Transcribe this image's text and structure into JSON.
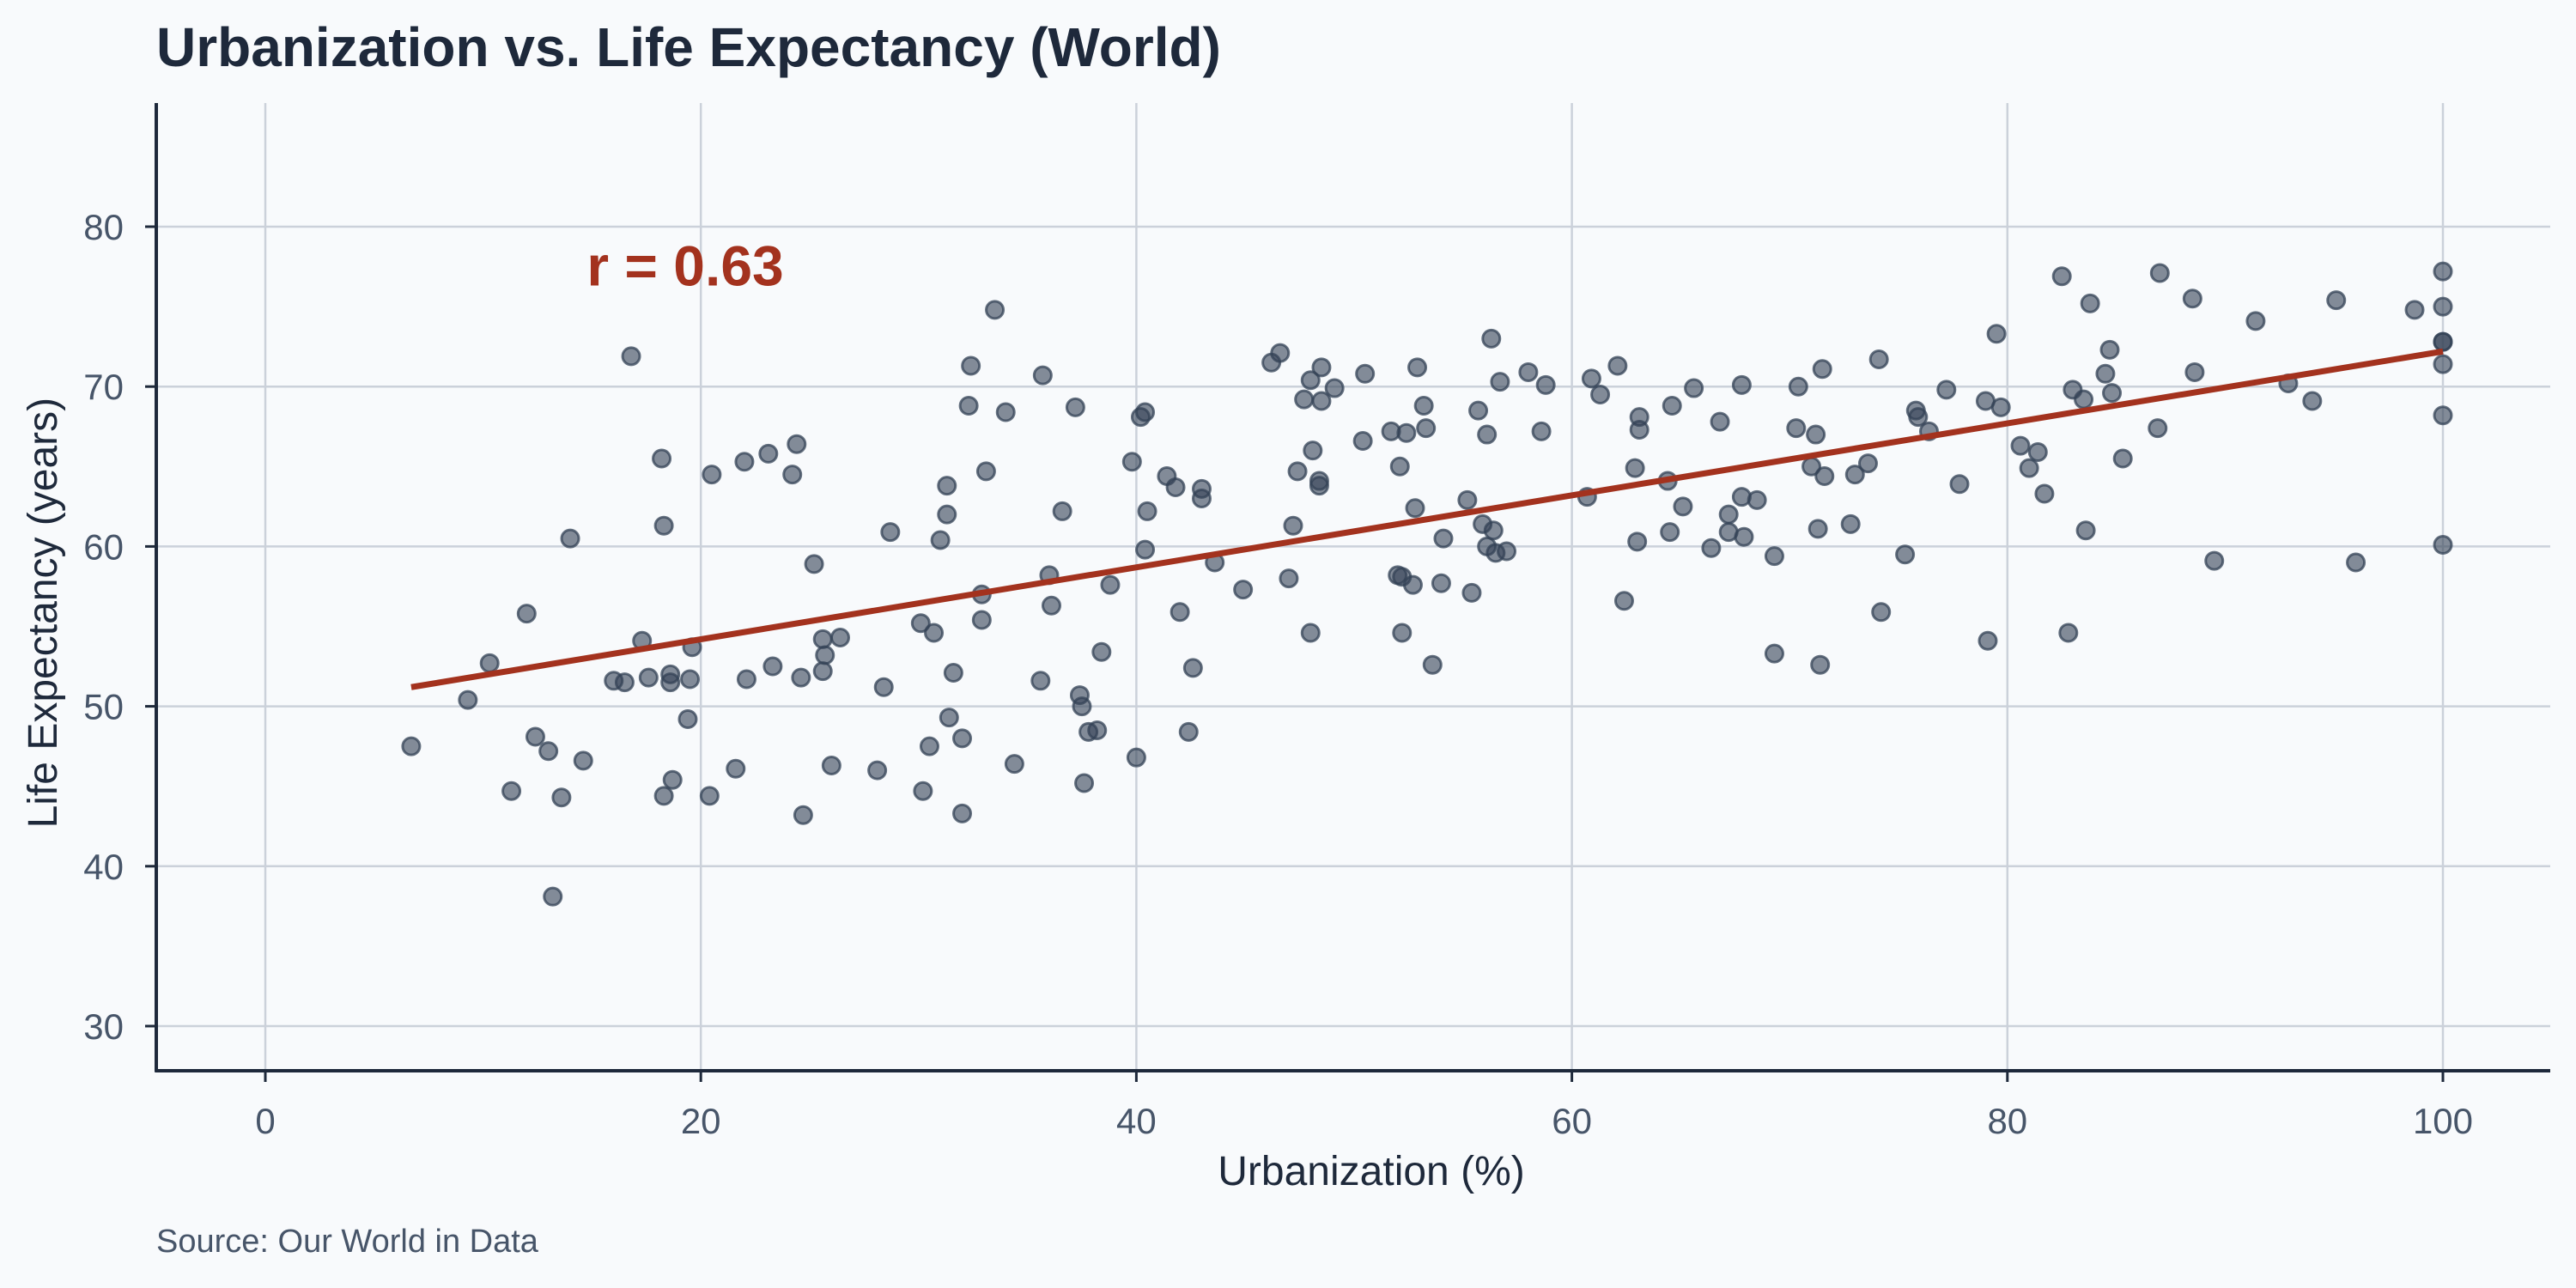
{
  "chart_data": {
    "type": "scatter",
    "title": "Urbanization vs. Life Expectancy (World)",
    "xlabel": "Urbanization (%)",
    "ylabel": "Life Expectancy (years)",
    "source": "Source: Our World in Data",
    "xlim": [
      -5,
      105
    ],
    "ylim": [
      28,
      88
    ],
    "xticks": [
      0,
      20,
      40,
      60,
      80,
      100
    ],
    "yticks": [
      30,
      40,
      50,
      60,
      70,
      80
    ],
    "grid": true,
    "annotation": {
      "text": "r = 0.63",
      "x": 15,
      "y": 77.5
    },
    "regression": {
      "x": [
        6.7,
        100
      ],
      "y": [
        51.2,
        72.2
      ]
    },
    "colors": {
      "points": "#334155",
      "trend": "#a3321e",
      "axis": "#1e293b",
      "grid": "#cbd1da",
      "tick_text": "#475569"
    },
    "points": [
      [
        6.7,
        47.5
      ],
      [
        9.3,
        50.4
      ],
      [
        10.3,
        52.7
      ],
      [
        11.3,
        44.7
      ],
      [
        12.0,
        55.8
      ],
      [
        12.4,
        48.1
      ],
      [
        13.0,
        47.2
      ],
      [
        13.2,
        38.1
      ],
      [
        13.6,
        44.3
      ],
      [
        14.0,
        60.5
      ],
      [
        14.6,
        46.6
      ],
      [
        16.0,
        51.6
      ],
      [
        16.5,
        51.5
      ],
      [
        16.8,
        71.9
      ],
      [
        17.3,
        54.1
      ],
      [
        17.6,
        51.8
      ],
      [
        18.2,
        65.5
      ],
      [
        18.3,
        61.3
      ],
      [
        18.3,
        44.4
      ],
      [
        18.6,
        52.0
      ],
      [
        18.6,
        51.5
      ],
      [
        18.7,
        45.4
      ],
      [
        19.4,
        49.2
      ],
      [
        19.5,
        51.7
      ],
      [
        19.6,
        53.7
      ],
      [
        20.4,
        44.4
      ],
      [
        20.5,
        64.5
      ],
      [
        21.6,
        46.1
      ],
      [
        22.0,
        65.3
      ],
      [
        22.1,
        51.7
      ],
      [
        23.1,
        65.8
      ],
      [
        23.3,
        52.5
      ],
      [
        24.2,
        64.5
      ],
      [
        24.4,
        66.4
      ],
      [
        24.6,
        51.8
      ],
      [
        24.7,
        43.2
      ],
      [
        25.2,
        58.9
      ],
      [
        25.6,
        54.2
      ],
      [
        25.6,
        52.2
      ],
      [
        25.7,
        53.2
      ],
      [
        26.0,
        46.3
      ],
      [
        26.4,
        54.3
      ],
      [
        28.1,
        46.0
      ],
      [
        28.4,
        51.2
      ],
      [
        28.7,
        60.9
      ],
      [
        30.1,
        55.2
      ],
      [
        30.2,
        44.7
      ],
      [
        30.5,
        47.5
      ],
      [
        30.7,
        54.6
      ],
      [
        31.0,
        60.4
      ],
      [
        31.3,
        63.8
      ],
      [
        31.3,
        62.0
      ],
      [
        31.4,
        49.3
      ],
      [
        31.6,
        52.1
      ],
      [
        32.0,
        48.0
      ],
      [
        32.0,
        43.3
      ],
      [
        32.3,
        68.8
      ],
      [
        32.4,
        71.3
      ],
      [
        32.9,
        57.0
      ],
      [
        32.9,
        55.4
      ],
      [
        33.1,
        64.7
      ],
      [
        33.5,
        74.8
      ],
      [
        34.0,
        68.4
      ],
      [
        34.4,
        46.4
      ],
      [
        35.6,
        51.6
      ],
      [
        35.7,
        70.7
      ],
      [
        36.0,
        58.2
      ],
      [
        36.1,
        56.3
      ],
      [
        36.6,
        62.2
      ],
      [
        37.2,
        68.7
      ],
      [
        37.4,
        50.7
      ],
      [
        37.5,
        50.0
      ],
      [
        37.6,
        45.2
      ],
      [
        37.8,
        48.4
      ],
      [
        38.2,
        48.5
      ],
      [
        38.4,
        53.4
      ],
      [
        38.8,
        57.6
      ],
      [
        39.8,
        65.3
      ],
      [
        40.0,
        46.8
      ],
      [
        40.2,
        68.1
      ],
      [
        40.4,
        68.4
      ],
      [
        40.4,
        59.8
      ],
      [
        40.5,
        62.2
      ],
      [
        41.4,
        64.4
      ],
      [
        41.8,
        63.7
      ],
      [
        42.0,
        55.9
      ],
      [
        42.4,
        48.4
      ],
      [
        42.6,
        52.4
      ],
      [
        43.0,
        63.0
      ],
      [
        43.0,
        63.6
      ],
      [
        43.6,
        59.0
      ],
      [
        44.9,
        57.3
      ],
      [
        46.2,
        71.5
      ],
      [
        46.6,
        72.1
      ],
      [
        47.0,
        58.0
      ],
      [
        47.2,
        61.3
      ],
      [
        47.4,
        64.7
      ],
      [
        47.7,
        69.2
      ],
      [
        48.0,
        70.4
      ],
      [
        48.0,
        54.6
      ],
      [
        48.1,
        66.0
      ],
      [
        48.4,
        64.1
      ],
      [
        48.4,
        63.8
      ],
      [
        48.5,
        71.2
      ],
      [
        48.5,
        69.1
      ],
      [
        49.1,
        69.9
      ],
      [
        50.4,
        66.6
      ],
      [
        50.5,
        70.8
      ],
      [
        51.7,
        67.2
      ],
      [
        52.0,
        58.2
      ],
      [
        52.1,
        65.0
      ],
      [
        52.2,
        54.6
      ],
      [
        52.2,
        58.1
      ],
      [
        52.4,
        67.1
      ],
      [
        52.7,
        57.6
      ],
      [
        52.8,
        62.4
      ],
      [
        52.9,
        71.2
      ],
      [
        53.2,
        68.8
      ],
      [
        53.3,
        67.4
      ],
      [
        53.6,
        52.6
      ],
      [
        54.0,
        57.7
      ],
      [
        54.1,
        60.5
      ],
      [
        55.2,
        62.9
      ],
      [
        55.4,
        57.1
      ],
      [
        55.7,
        68.5
      ],
      [
        55.9,
        61.4
      ],
      [
        56.1,
        67.0
      ],
      [
        56.1,
        60.0
      ],
      [
        56.3,
        73.0
      ],
      [
        56.4,
        61.0
      ],
      [
        56.5,
        59.6
      ],
      [
        56.7,
        70.3
      ],
      [
        57.0,
        59.7
      ],
      [
        58.0,
        70.9
      ],
      [
        58.6,
        67.2
      ],
      [
        58.8,
        70.1
      ],
      [
        60.7,
        63.1
      ],
      [
        60.9,
        70.5
      ],
      [
        61.3,
        69.5
      ],
      [
        62.1,
        71.3
      ],
      [
        62.4,
        56.6
      ],
      [
        62.9,
        64.9
      ],
      [
        63.0,
        60.3
      ],
      [
        63.1,
        68.1
      ],
      [
        63.1,
        67.3
      ],
      [
        64.4,
        64.1
      ],
      [
        64.5,
        60.9
      ],
      [
        64.6,
        68.8
      ],
      [
        65.1,
        62.5
      ],
      [
        65.6,
        69.9
      ],
      [
        66.4,
        59.9
      ],
      [
        66.8,
        67.8
      ],
      [
        67.2,
        62.0
      ],
      [
        67.2,
        60.9
      ],
      [
        67.8,
        63.1
      ],
      [
        67.8,
        70.1
      ],
      [
        67.9,
        60.6
      ],
      [
        68.5,
        62.9
      ],
      [
        69.3,
        59.4
      ],
      [
        69.3,
        53.3
      ],
      [
        70.3,
        67.4
      ],
      [
        70.4,
        70.0
      ],
      [
        71.0,
        65.0
      ],
      [
        71.2,
        67.0
      ],
      [
        71.3,
        61.1
      ],
      [
        71.4,
        52.6
      ],
      [
        71.5,
        71.1
      ],
      [
        71.6,
        64.4
      ],
      [
        72.8,
        61.4
      ],
      [
        73.0,
        64.5
      ],
      [
        73.6,
        65.2
      ],
      [
        74.1,
        71.7
      ],
      [
        74.2,
        55.9
      ],
      [
        75.3,
        59.5
      ],
      [
        75.8,
        68.5
      ],
      [
        75.9,
        68.1
      ],
      [
        76.4,
        67.2
      ],
      [
        77.2,
        69.8
      ],
      [
        77.8,
        63.9
      ],
      [
        79.0,
        69.1
      ],
      [
        79.1,
        54.1
      ],
      [
        79.5,
        73.3
      ],
      [
        79.7,
        68.7
      ],
      [
        80.6,
        66.3
      ],
      [
        81.0,
        64.9
      ],
      [
        81.4,
        65.9
      ],
      [
        81.7,
        63.3
      ],
      [
        82.5,
        76.9
      ],
      [
        82.8,
        54.6
      ],
      [
        83.0,
        69.8
      ],
      [
        83.5,
        69.2
      ],
      [
        83.6,
        61.0
      ],
      [
        83.8,
        75.2
      ],
      [
        84.5,
        70.8
      ],
      [
        84.7,
        72.3
      ],
      [
        84.8,
        69.6
      ],
      [
        85.3,
        65.5
      ],
      [
        86.9,
        67.4
      ],
      [
        87.0,
        77.1
      ],
      [
        88.5,
        75.5
      ],
      [
        88.6,
        70.9
      ],
      [
        89.5,
        59.1
      ],
      [
        91.4,
        74.1
      ],
      [
        92.9,
        70.2
      ],
      [
        94.0,
        69.1
      ],
      [
        95.1,
        75.4
      ],
      [
        96.0,
        59.0
      ],
      [
        98.7,
        74.8
      ],
      [
        100,
        77.2
      ],
      [
        100,
        75.0
      ],
      [
        100,
        72.8
      ],
      [
        100,
        72.8
      ],
      [
        100,
        71.4
      ],
      [
        100,
        68.2
      ],
      [
        100,
        60.1
      ]
    ]
  }
}
